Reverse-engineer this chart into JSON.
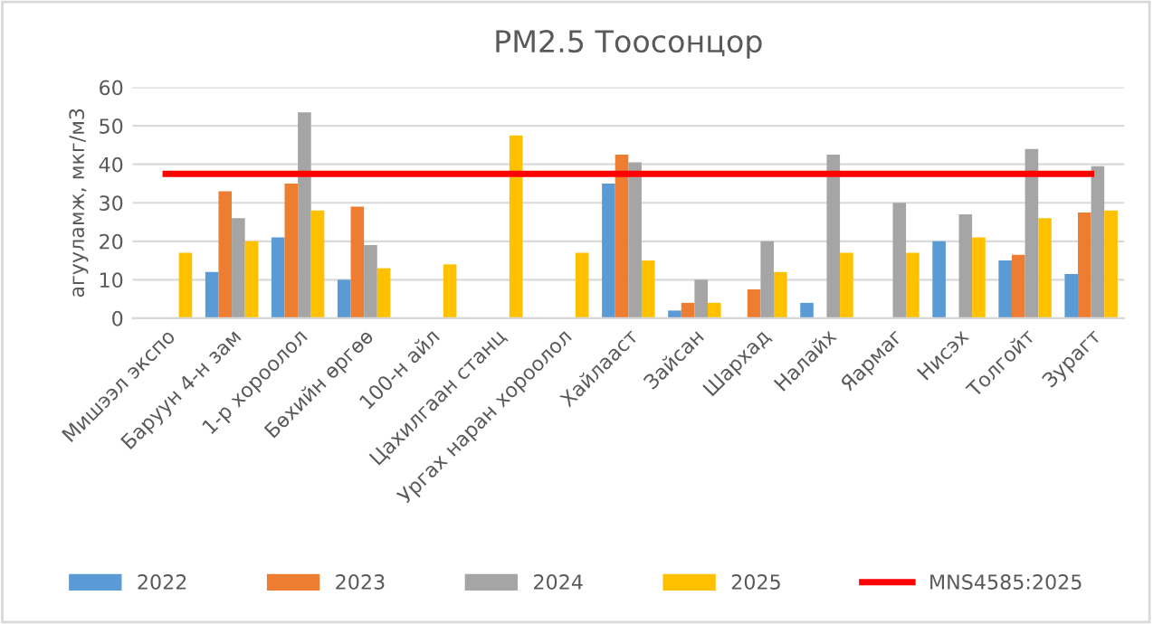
{
  "chart_data": {
    "type": "bar",
    "title": "PM2.5 Тоосонцор",
    "ylabel": "агууламж, мкг/м3",
    "categories": [
      "Мишээл экспо",
      "Баруун 4-н зам",
      "1-р хороолол",
      "Бөхийн өргөө",
      "100-н айл",
      "Цахилгаан станц",
      "Ургах наран хороолол",
      "Хайлааст",
      "Зайсан",
      "Шархад",
      "Налайх",
      "Яармаг",
      "Нисэх",
      "Толгойт",
      "Зурагт"
    ],
    "series": [
      {
        "name": "2022",
        "color": "#5b9bd5",
        "values": [
          null,
          12,
          21,
          10,
          null,
          null,
          null,
          35,
          2,
          null,
          4,
          null,
          20,
          15,
          11.5
        ]
      },
      {
        "name": "2023",
        "color": "#ed7d31",
        "values": [
          null,
          33,
          35,
          29,
          null,
          null,
          null,
          42.5,
          4,
          7.5,
          null,
          null,
          null,
          16.5,
          27.5
        ]
      },
      {
        "name": "2024",
        "color": "#a5a5a5",
        "values": [
          null,
          26,
          53.5,
          19,
          null,
          null,
          null,
          40.5,
          10,
          20,
          42.5,
          30,
          27,
          44,
          39.5
        ]
      },
      {
        "name": "2025",
        "color": "#ffc000",
        "values": [
          17,
          20,
          28,
          13,
          14,
          47.5,
          17,
          15,
          4,
          12,
          17,
          17,
          21,
          26,
          28
        ]
      },
      {
        "name": "MNS4585:2025",
        "color": "#ff0000",
        "type": "line",
        "values": [
          37.5,
          37.5,
          37.5,
          37.5,
          37.5,
          37.5,
          37.5,
          37.5,
          37.5,
          37.5,
          37.5,
          37.5,
          37.5,
          37.5,
          37.5
        ]
      }
    ],
    "ylim": [
      0,
      60
    ],
    "yticks": [
      0,
      10,
      20,
      30,
      40,
      50,
      60
    ],
    "grid": "y",
    "legend": "bottom"
  }
}
